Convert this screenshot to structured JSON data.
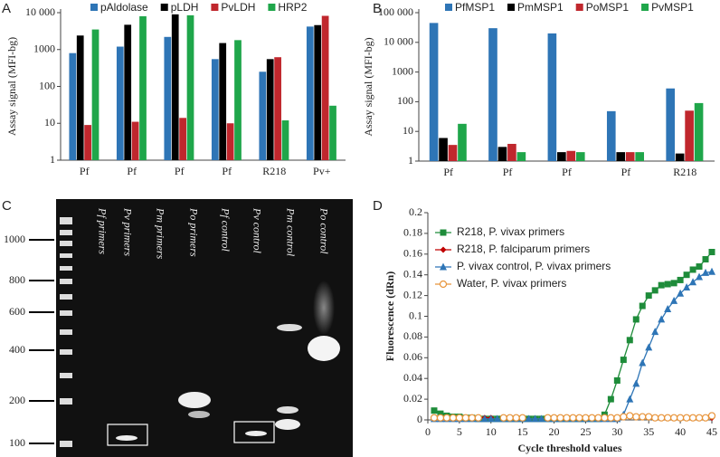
{
  "chart_data": [
    {
      "type": "bar",
      "panel": "A",
      "ylabel": "Assay signal (MFI-bg)",
      "log_scale": true,
      "categories": [
        "Pf",
        "Pf",
        "Pf",
        "Pf",
        "R218",
        "Pv+"
      ],
      "series": [
        {
          "name": "pAldolase",
          "color": "#2e75b6",
          "values": [
            800,
            1200,
            2200,
            550,
            250,
            4200
          ]
        },
        {
          "name": "pLDH",
          "color": "#000000",
          "values": [
            2400,
            4700,
            9000,
            1500,
            550,
            4600
          ]
        },
        {
          "name": "PvLDH",
          "color": "#c0272d",
          "values": [
            9,
            11,
            14,
            10,
            620,
            8200
          ]
        },
        {
          "name": "HRP2",
          "color": "#1fa64a",
          "values": [
            3500,
            8000,
            8500,
            1800,
            12,
            30
          ]
        }
      ],
      "ylim": [
        1,
        10000
      ],
      "yticks": [
        1,
        10,
        100,
        1000,
        {
          "value": 10000,
          "label": "10 000"
        }
      ]
    },
    {
      "type": "bar",
      "panel": "B",
      "ylabel": "Assay signal (MFI-bg)",
      "log_scale": true,
      "categories": [
        "Pf",
        "Pf",
        "Pf",
        "Pf",
        "R218"
      ],
      "series": [
        {
          "name": "PfMSP1",
          "color": "#2e75b6",
          "values": [
            45000,
            30000,
            20000,
            48,
            280
          ]
        },
        {
          "name": "PmMSP1",
          "color": "#000000",
          "values": [
            6,
            3,
            2,
            2,
            1.8
          ]
        },
        {
          "name": "PoMSP1",
          "color": "#c0272d",
          "values": [
            3.5,
            3.8,
            2.2,
            2,
            50
          ]
        },
        {
          "name": "PvMSP1",
          "color": "#1fa64a",
          "values": [
            18,
            2,
            2,
            2,
            90
          ]
        }
      ],
      "ylim": [
        1,
        100000
      ],
      "yticks": [
        1,
        10,
        100,
        1000,
        {
          "value": 10000,
          "label": "10 000"
        },
        {
          "value": 100000,
          "label": "100 000"
        }
      ]
    },
    {
      "type": "line",
      "panel": "D",
      "xlabel": "Cycle threshold values",
      "ylabel": "Fluorescence (dRn)",
      "x": [
        1,
        2,
        3,
        4,
        5,
        6,
        7,
        8,
        9,
        10,
        11,
        12,
        13,
        14,
        15,
        16,
        17,
        18,
        19,
        20,
        21,
        22,
        23,
        24,
        25,
        26,
        27,
        28,
        29,
        30,
        31,
        32,
        33,
        34,
        35,
        36,
        37,
        38,
        39,
        40,
        41,
        42,
        43,
        44,
        45
      ],
      "series": [
        {
          "name": "R218, P. vivax primers",
          "color": "#1e8c3a",
          "marker": "square",
          "values": [
            0.009,
            0.006,
            0.004,
            0.003,
            0.003,
            0.002,
            0.002,
            0.001,
            0.001,
            0.001,
            0.001,
            0.001,
            0.001,
            0.001,
            0.001,
            0.001,
            0.001,
            0.001,
            0.001,
            0.001,
            0.001,
            0.001,
            0.001,
            0.001,
            0.001,
            0.001,
            0.001,
            0.005,
            0.02,
            0.038,
            0.058,
            0.077,
            0.097,
            0.11,
            0.12,
            0.125,
            0.13,
            0.131,
            0.132,
            0.135,
            0.14,
            0.145,
            0.148,
            0.155,
            0.162
          ]
        },
        {
          "name": "R218, P. falciparum primers",
          "color": "#c00000",
          "marker": "diamond",
          "values": [
            0.002,
            0.002,
            0.002,
            0.002,
            0.002,
            0.002,
            0.002,
            0.002,
            0.002,
            0.002,
            null,
            null,
            null,
            null,
            null,
            null,
            null,
            null,
            null,
            0.002,
            0.002,
            0.002,
            0.002,
            0.002,
            0.002,
            0.002,
            0.002,
            null,
            null,
            null,
            null,
            null,
            null,
            null,
            null,
            null,
            null,
            null,
            null,
            0.002,
            0.002,
            0.002,
            0.002,
            0.002,
            0.002
          ]
        },
        {
          "name": "P. vivax control, P. vivax primers",
          "color": "#2e75b6",
          "marker": "triangle",
          "values": [
            0.001,
            0.001,
            0.001,
            0.001,
            0.001,
            0.001,
            0.001,
            0.001,
            0.001,
            0.001,
            0.001,
            0.001,
            0.001,
            0.001,
            0.001,
            0.001,
            0.001,
            0.001,
            0.001,
            0.001,
            0.001,
            0.001,
            0.001,
            0.001,
            0.001,
            0.001,
            0.001,
            0.001,
            0.001,
            0.001,
            0.005,
            0.02,
            0.035,
            0.055,
            0.07,
            0.085,
            0.097,
            0.107,
            0.115,
            0.122,
            0.128,
            0.133,
            0.138,
            0.142,
            0.143
          ]
        },
        {
          "name": "Water, P. vivax primers",
          "color": "#e8943a",
          "marker": "circle",
          "values": [
            0.002,
            0.002,
            0.002,
            0.002,
            0.002,
            0.002,
            0.002,
            0.002,
            null,
            null,
            null,
            0.002,
            0.002,
            0.002,
            0.002,
            null,
            null,
            null,
            0.002,
            0.002,
            0.002,
            0.002,
            0.002,
            0.002,
            0.002,
            0.002,
            0.002,
            0.002,
            0.002,
            0.002,
            0.003,
            0.004,
            0.003,
            0.003,
            0.003,
            0.002,
            0.002,
            0.002,
            0.002,
            0.002,
            0.002,
            0.002,
            0.002,
            0.002,
            0.004
          ]
        }
      ],
      "xlim": [
        0,
        45
      ],
      "xticks": [
        0,
        5,
        10,
        15,
        20,
        25,
        30,
        35,
        40,
        45
      ],
      "ylim": [
        0,
        0.2
      ],
      "yticks": [
        0,
        0.02,
        0.04,
        0.06,
        0.08,
        0.1,
        0.12,
        0.14,
        0.16,
        0.18,
        0.2
      ]
    }
  ],
  "gel": {
    "panel": "C",
    "ladder_labels": [
      1000,
      800,
      600,
      400,
      200,
      100
    ],
    "lanes": [
      "Pf primers",
      "Pv primers",
      "Pm primers",
      "Po primers",
      "Pf control",
      "Pv control",
      "Pm control",
      "Po control"
    ]
  }
}
